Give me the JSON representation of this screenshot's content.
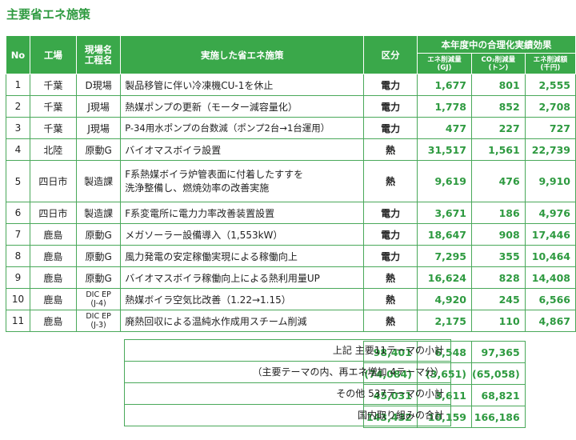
{
  "title": "主要省エネ施策",
  "table": {
    "headers": {
      "no": "No",
      "plant": "工場",
      "unit_line1": "現場名",
      "unit_line2": "工程名",
      "measure": "実施した省エネ施策",
      "category": "区分",
      "group": "本年度中の合理化実績効果",
      "energy_line1": "エネ削減量",
      "energy_line2": "(GJ)",
      "co2_line1": "CO₂削減量",
      "co2_line2": "(トン)",
      "cost_line1": "エネ削減額",
      "cost_line2": "(千円)"
    },
    "rows": [
      {
        "no": "1",
        "plant": "千葉",
        "unit": "D現場",
        "measure": "製品移管に伴い冷凍機CU-1を休止",
        "category": "電力",
        "energy": "1,677",
        "co2": "801",
        "cost": "2,555"
      },
      {
        "no": "2",
        "plant": "千葉",
        "unit": "J現場",
        "measure": "熱媒ポンプの更新（モーター減容量化）",
        "category": "電力",
        "energy": "1,778",
        "co2": "852",
        "cost": "2,708"
      },
      {
        "no": "3",
        "plant": "千葉",
        "unit": "J現場",
        "measure": "P-34用水ポンプの台数減（ポンプ2台→1台運用）",
        "category": "電力",
        "energy": "477",
        "co2": "227",
        "cost": "727"
      },
      {
        "no": "4",
        "plant": "北陸",
        "unit": "原動G",
        "measure": "バイオマスボイラ設置",
        "category": "熱",
        "energy": "31,517",
        "co2": "1,561",
        "cost": "22,739"
      },
      {
        "no": "5",
        "plant": "四日市",
        "unit": "製造課",
        "measure_line1": "F系熱媒ボイラ炉管表面に付着したすすを",
        "measure_line2": "洗浄整備し、燃焼効率の改善実施",
        "category": "熱",
        "energy": "9,619",
        "co2": "476",
        "cost": "9,910"
      },
      {
        "no": "6",
        "plant": "四日市",
        "unit": "製造課",
        "measure": "F系変電所に電力力率改善装置設置",
        "category": "電力",
        "energy": "3,671",
        "co2": "186",
        "cost": "4,976"
      },
      {
        "no": "7",
        "plant": "鹿島",
        "unit": "原動G",
        "measure": "メガソーラー設備導入（1,553kW）",
        "category": "電力",
        "energy": "18,647",
        "co2": "908",
        "cost": "17,446"
      },
      {
        "no": "8",
        "plant": "鹿島",
        "unit": "原動G",
        "measure": "風力発電の安定稼働実現による稼働向上",
        "category": "電力",
        "energy": "7,295",
        "co2": "355",
        "cost": "10,464"
      },
      {
        "no": "9",
        "plant": "鹿島",
        "unit": "原動G",
        "measure": "バイオマスボイラ稼働向上による熱利用量UP",
        "category": "熱",
        "energy": "16,624",
        "co2": "828",
        "cost": "14,408"
      },
      {
        "no": "10",
        "plant": "鹿島",
        "unit_line1": "DIC EP",
        "unit_line2": "(J-4)",
        "measure": "熱媒ボイラ空気比改善（1.22→1.15）",
        "category": "熱",
        "energy": "4,920",
        "co2": "245",
        "cost": "6,566"
      },
      {
        "no": "11",
        "plant": "鹿島",
        "unit_line1": "DIC EP",
        "unit_line2": "(J-3)",
        "measure": "廃熱回収による温純水作成用スチーム削減",
        "category": "熱",
        "energy": "2,175",
        "co2": "110",
        "cost": "4,867"
      }
    ],
    "summary": [
      {
        "label": "上記 主要11テーマの小計",
        "energy": "98,401",
        "co2": "6,548",
        "cost": "97,365"
      },
      {
        "label": "（主要テーマの内、再エネ増加 4テーマ分）",
        "energy": "(74,084)",
        "co2": "(3,651)",
        "cost": "(65,058)"
      },
      {
        "label": "その他 537テーマの小計",
        "energy": "45,031",
        "co2": "3,611",
        "cost": "68,821"
      },
      {
        "label": "国内取り組みの合計",
        "energy": "143,432",
        "co2": "10,159",
        "cost": "166,186"
      }
    ]
  }
}
